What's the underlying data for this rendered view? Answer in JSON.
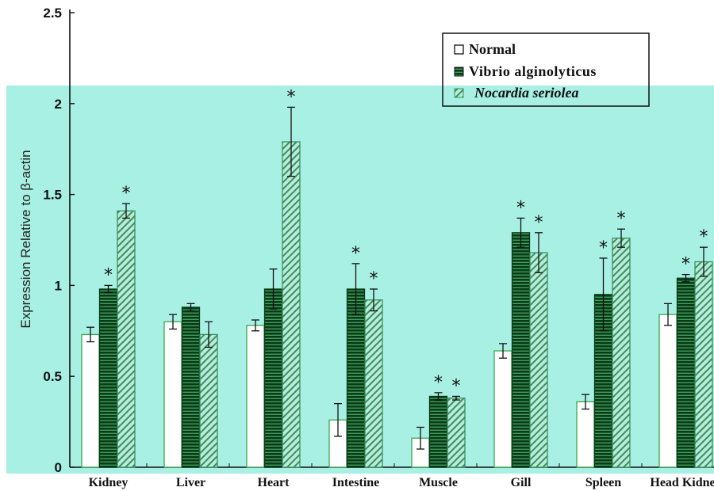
{
  "chart_data": {
    "type": "bar",
    "ylabel": "Expression Relative to β-actin",
    "xlabel": "",
    "ylim": [
      0,
      2.5
    ],
    "yticks": [
      "0",
      "0.5",
      "1",
      "1.5",
      "2",
      "2.5"
    ],
    "categories": [
      "Kidney",
      "Liver",
      "Heart",
      "Intestine",
      "Muscle",
      "Gill",
      "Spleen",
      "Head Kidney"
    ],
    "series": [
      {
        "name": "Normal",
        "values": [
          0.73,
          0.8,
          0.78,
          0.26,
          0.16,
          0.64,
          0.36,
          0.84
        ],
        "errors": [
          0.04,
          0.04,
          0.03,
          0.09,
          0.06,
          0.04,
          0.04,
          0.06
        ],
        "significant": [
          false,
          false,
          false,
          false,
          false,
          false,
          false,
          false
        ]
      },
      {
        "name": "Vibrio alginolyticus",
        "values": [
          0.98,
          0.88,
          0.98,
          0.98,
          0.39,
          1.29,
          0.95,
          1.04
        ],
        "errors": [
          0.02,
          0.02,
          0.11,
          0.14,
          0.02,
          0.08,
          0.2,
          0.02
        ],
        "significant": [
          true,
          false,
          false,
          true,
          true,
          true,
          true,
          true
        ]
      },
      {
        "name": "Nocardia seriolea",
        "values": [
          1.41,
          0.73,
          1.79,
          0.92,
          0.38,
          1.18,
          1.26,
          1.13
        ],
        "errors": [
          0.04,
          0.07,
          0.19,
          0.06,
          0.01,
          0.11,
          0.05,
          0.08
        ],
        "significant": [
          true,
          false,
          true,
          true,
          true,
          true,
          true,
          true
        ]
      }
    ],
    "significance_marker": "*",
    "legend_position": "top-right",
    "colors": {
      "panel_background": "#a8f0e4",
      "normal_fill": "#ffffff",
      "vibrio_fill": "#0d3b1c",
      "nocardia_fill": "#9ee0cf",
      "outline": "#2c8c3c"
    }
  }
}
